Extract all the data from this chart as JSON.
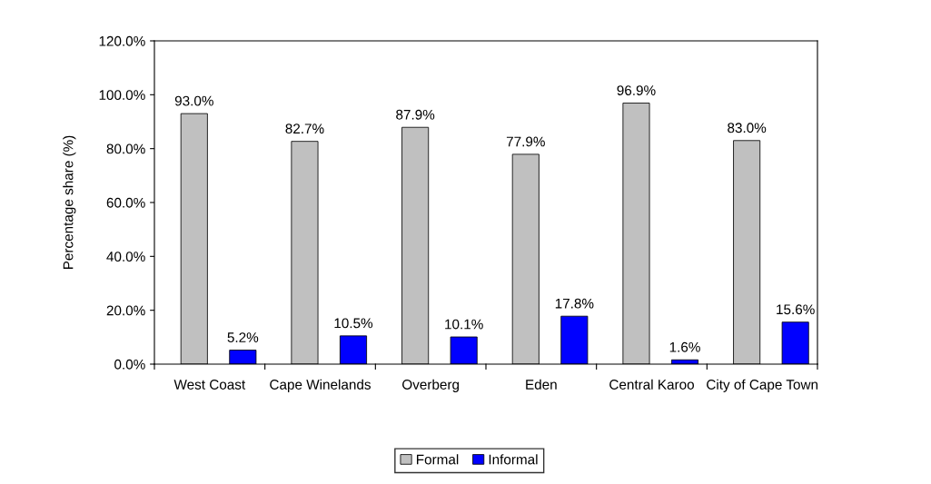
{
  "chart_data": {
    "type": "bar",
    "ylabel": "Percentage share (%)",
    "categories": [
      "West Coast",
      "Cape Winelands",
      "Overberg",
      "Eden",
      "Central Karoo",
      "City of Cape Town"
    ],
    "series": [
      {
        "name": "Formal",
        "color": "#c0c0c0",
        "values": [
          93.0,
          82.7,
          87.9,
          77.9,
          96.9,
          83.0
        ],
        "value_labels": [
          "93.0%",
          "82.7%",
          "87.9%",
          "77.9%",
          "96.9%",
          "83.0%"
        ]
      },
      {
        "name": "Informal",
        "color": "#0000ff",
        "values": [
          5.2,
          10.5,
          10.1,
          17.8,
          1.6,
          15.6
        ],
        "value_labels": [
          "5.2%",
          "10.5%",
          "10.1%",
          "17.8%",
          "1.6%",
          "15.6%"
        ]
      }
    ],
    "ylim": [
      0,
      120
    ],
    "yticks": [
      {
        "value": 0,
        "label": "0.0%"
      },
      {
        "value": 20,
        "label": "20.0%"
      },
      {
        "value": 40,
        "label": "40.0%"
      },
      {
        "value": 60,
        "label": "60.0%"
      },
      {
        "value": 80,
        "label": "80.0%"
      },
      {
        "value": 100,
        "label": "100.0%"
      },
      {
        "value": 120,
        "label": "120.0%"
      }
    ],
    "grid": false,
    "legend": "bottom"
  }
}
